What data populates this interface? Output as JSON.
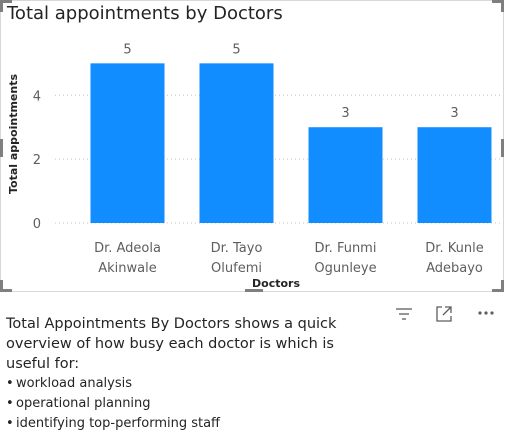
{
  "chart_data": {
    "type": "bar",
    "title": "Total appointments by Doctors",
    "xlabel": "Doctors",
    "ylabel": "Total appointments",
    "categories": [
      "Dr. Adeola Akinwale",
      "Dr. Tayo Olufemi",
      "Dr. Funmi Ogunleye",
      "Dr. Kunle Adebayo"
    ],
    "category_lines": [
      [
        "Dr. Adeola",
        "Akinwale"
      ],
      [
        "Dr. Tayo",
        "Olufemi"
      ],
      [
        "Dr. Funmi",
        "Ogunleye"
      ],
      [
        "Dr. Kunle",
        "Adebayo"
      ]
    ],
    "values": [
      5,
      5,
      3,
      3
    ],
    "data_labels": [
      "5",
      "5",
      "3",
      "3"
    ],
    "yticks": [
      0,
      2,
      4
    ],
    "ylim": [
      0,
      5.7
    ],
    "grid": true,
    "legend": "none",
    "bar_color": "#118DFF"
  },
  "toolbar": {
    "icons": [
      "filter-icon",
      "focus-mode-icon",
      "more-options-icon"
    ]
  },
  "description": {
    "text": "Total Appointments By Doctors shows a quick overview of how busy each doctor is which is useful for:",
    "bullets": [
      "workload analysis",
      "operational planning",
      "identifying top-performing staff"
    ]
  }
}
